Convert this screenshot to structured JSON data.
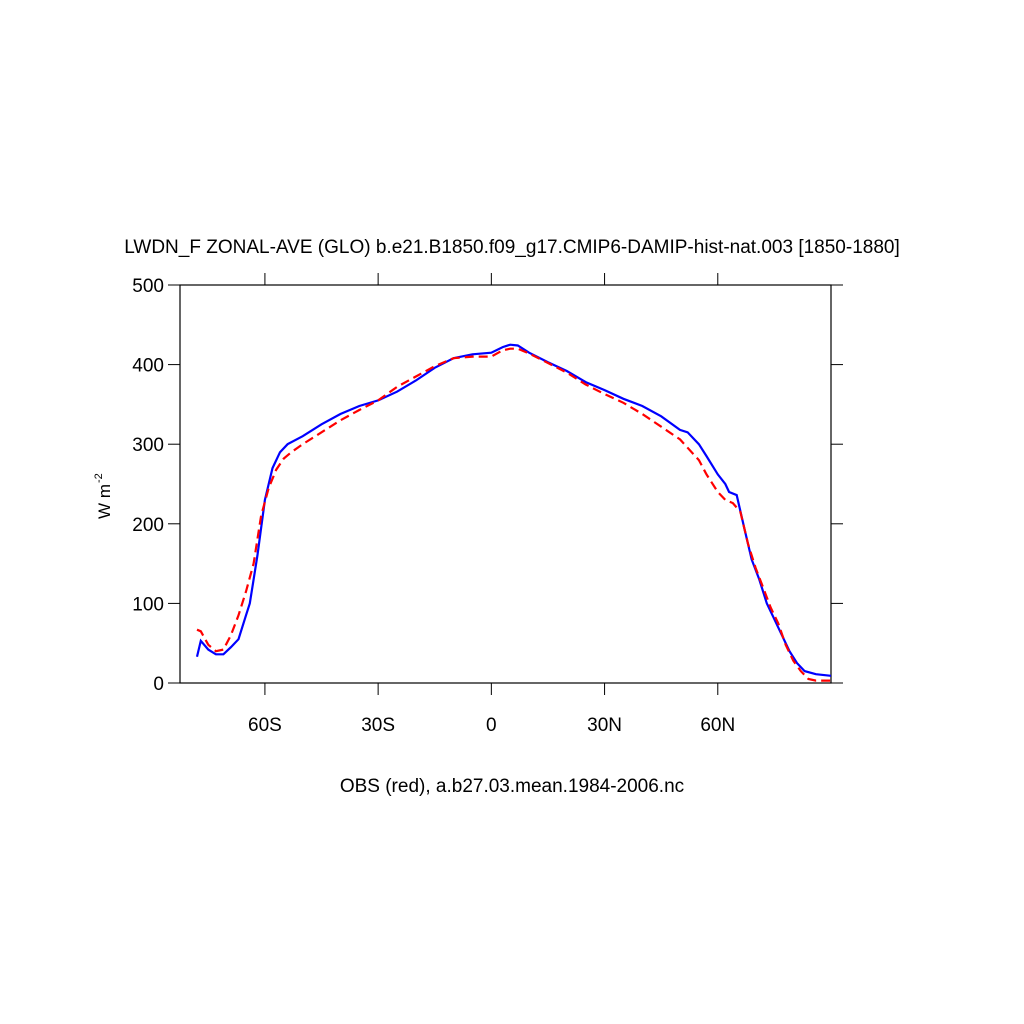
{
  "chart_data": {
    "type": "line",
    "title": "LWDN_F ZONAL-AVE (GLO) b.e21.B1850.f09_g17.CMIP6-DAMIP-hist-nat.003 [1850-1880]",
    "ylabel": {
      "text": "W m",
      "superscript": "-2"
    },
    "xlabel": "OBS (red), a.b27.03.mean.1984-2006.nc",
    "xlim": [
      -82.5,
      90
    ],
    "ylim": [
      0,
      500
    ],
    "xticks": [
      {
        "value": -60,
        "label": "60S"
      },
      {
        "value": -30,
        "label": "30S"
      },
      0,
      {
        "value": 30,
        "label": "30N"
      },
      {
        "value": 60,
        "label": "60N"
      }
    ],
    "yticks": [
      0,
      100,
      200,
      300,
      400,
      500
    ],
    "grid": false,
    "series": [
      {
        "color": "#0000ff",
        "dash": false,
        "x": [
          -78,
          -77,
          -75,
          -73,
          -71,
          -69,
          -67,
          -65,
          -64,
          -62,
          -60,
          -58,
          -56,
          -54,
          -50,
          -45,
          -40,
          -35,
          -30,
          -25,
          -20,
          -15,
          -10,
          -5,
          0,
          3,
          5,
          7,
          10,
          15,
          20,
          25,
          30,
          35,
          40,
          45,
          50,
          52,
          55,
          57,
          60,
          62,
          63,
          65,
          67,
          69,
          71,
          73,
          75,
          77,
          79,
          81,
          83,
          86,
          90
        ],
        "values": [
          33,
          53,
          42,
          36,
          36,
          45,
          55,
          85,
          100,
          160,
          230,
          270,
          290,
          300,
          310,
          325,
          338,
          348,
          355,
          366,
          380,
          396,
          408,
          413,
          415,
          422,
          425,
          424,
          415,
          403,
          392,
          378,
          368,
          357,
          348,
          335,
          318,
          315,
          300,
          285,
          262,
          250,
          240,
          236,
          195,
          155,
          130,
          100,
          80,
          60,
          40,
          25,
          15,
          11,
          9
        ]
      },
      {
        "color": "#ff0000",
        "dash": true,
        "x": [
          -78,
          -77,
          -75,
          -73,
          -71,
          -69,
          -67,
          -65,
          -63,
          -61,
          -59,
          -57,
          -55,
          -53,
          -50,
          -45,
          -40,
          -35,
          -30,
          -25,
          -20,
          -15,
          -10,
          -5,
          0,
          3,
          5,
          7,
          10,
          15,
          20,
          25,
          30,
          35,
          40,
          45,
          50,
          55,
          57,
          60,
          62,
          64,
          66,
          68,
          70,
          72,
          74,
          76,
          78,
          80,
          82,
          84,
          86,
          90
        ],
        "values": [
          67,
          65,
          48,
          40,
          42,
          60,
          85,
          115,
          150,
          210,
          245,
          268,
          282,
          290,
          300,
          315,
          330,
          343,
          355,
          372,
          385,
          398,
          408,
          410,
          410,
          418,
          420,
          420,
          414,
          402,
          390,
          375,
          363,
          352,
          338,
          322,
          306,
          280,
          262,
          240,
          230,
          226,
          215,
          175,
          145,
          120,
          95,
          75,
          48,
          28,
          15,
          5,
          3,
          3
        ]
      }
    ]
  }
}
